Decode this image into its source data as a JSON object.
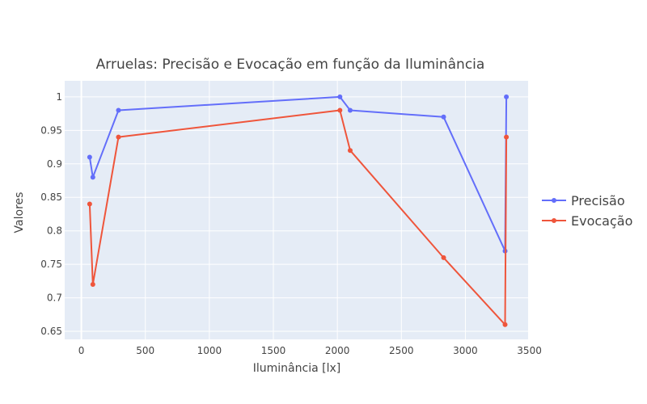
{
  "chart_data": {
    "type": "line",
    "title": "Arruelas: Precisão e Evocação em função da Iluminância",
    "xlabel": "Iluminância [lx]",
    "ylabel": "Valores",
    "xlim": [
      -130,
      3490
    ],
    "ylim": [
      0.638,
      1.024
    ],
    "xticks": [
      0,
      500,
      1000,
      1500,
      2000,
      2500,
      3000,
      3500
    ],
    "yticks": [
      0.65,
      0.7,
      0.75,
      0.8,
      0.85,
      0.9,
      0.95,
      1
    ],
    "ytick_labels": [
      "0.65",
      "0.7",
      "0.75",
      "0.8",
      "0.85",
      "0.9",
      "0.95",
      "1"
    ],
    "grid": true,
    "legend_position": "right",
    "background": "#e5ecf6",
    "series": [
      {
        "name": "Precisão",
        "color": "#636efa",
        "x": [
          65,
          90,
          290,
          2020,
          2100,
          2830,
          3310,
          3320
        ],
        "y": [
          0.91,
          0.88,
          0.98,
          1.0,
          0.98,
          0.97,
          0.77,
          1.0
        ]
      },
      {
        "name": "Evocação",
        "color": "#ef553b",
        "x": [
          65,
          90,
          290,
          2020,
          2100,
          2830,
          3310,
          3320
        ],
        "y": [
          0.84,
          0.72,
          0.94,
          0.98,
          0.92,
          0.76,
          0.66,
          0.94
        ]
      }
    ]
  }
}
